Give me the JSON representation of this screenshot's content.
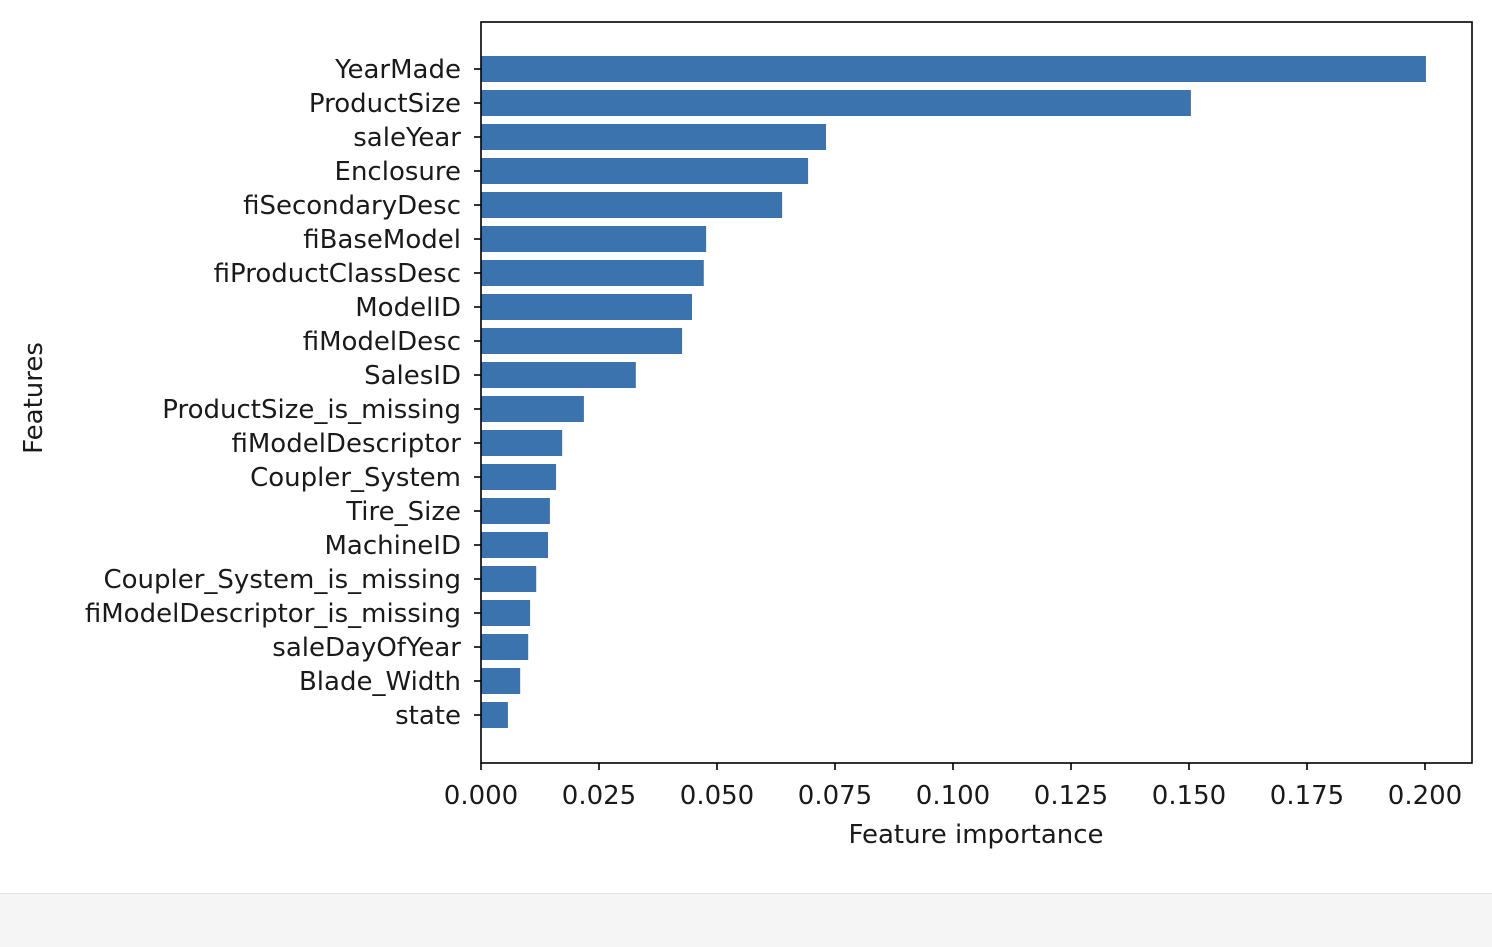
{
  "chart_data": {
    "type": "bar",
    "orientation": "horizontal",
    "title": "",
    "xlabel": "Feature importance",
    "ylabel": "Features",
    "xlim": [
      0,
      0.21
    ],
    "xticks": [
      "0.000",
      "0.025",
      "0.050",
      "0.075",
      "0.100",
      "0.125",
      "0.150",
      "0.175",
      "0.200"
    ],
    "grid": false,
    "bar_color": "#3a73ad",
    "categories": [
      "YearMade",
      "ProductSize",
      "saleYear",
      "Enclosure",
      "fiSecondaryDesc",
      "fiBaseModel",
      "fiProductClassDesc",
      "ModelID",
      "fiModelDesc",
      "SalesID",
      "ProductSize_is_missing",
      "fiModelDescriptor",
      "Coupler_System",
      "Tire_Size",
      "MachineID",
      "Coupler_System_is_missing",
      "fiModelDescriptor_is_missing",
      "saleDayOfYear",
      "Blade_Width",
      "state"
    ],
    "values": [
      0.2002,
      0.1504,
      0.0731,
      0.0693,
      0.0638,
      0.0477,
      0.0472,
      0.0447,
      0.0426,
      0.0328,
      0.0218,
      0.0172,
      0.0159,
      0.0146,
      0.0142,
      0.0117,
      0.0104,
      0.01,
      0.0083,
      0.0057
    ]
  }
}
